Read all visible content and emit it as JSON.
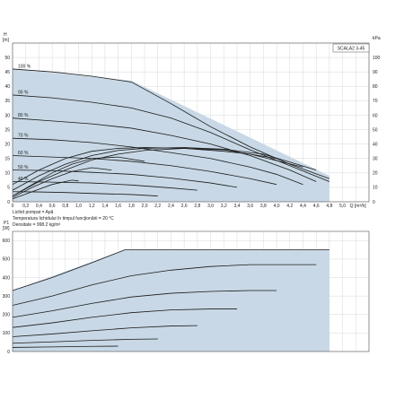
{
  "chart_data": [
    {
      "type": "line",
      "title": "SCALA2 3-45",
      "ylabel": "H [m]",
      "ylabel_right": "kPa",
      "xlabel": "Q [m³/h]",
      "xlim": [
        0,
        5.4
      ],
      "ylim": [
        0,
        55
      ],
      "ylim_right": [
        0,
        110
      ],
      "x_ticks": [
        "0",
        "0,2",
        "0,4",
        "0,6",
        "0,8",
        "1,0",
        "1,2",
        "1,4",
        "1,6",
        "1,8",
        "2,0",
        "2,2",
        "2,4",
        "2,6",
        "2,8",
        "3,0",
        "3,2",
        "3,4",
        "3,6",
        "3,8",
        "4,0",
        "4,2",
        "4,4",
        "4,6",
        "4,8",
        "5,0"
      ],
      "y_ticks": [
        "0",
        "5",
        "10",
        "15",
        "20",
        "25",
        "30",
        "35",
        "40",
        "45",
        "50"
      ],
      "y_ticks_right": [
        "0",
        "10",
        "20",
        "30",
        "40",
        "50",
        "60",
        "70",
        "80",
        "90",
        "100"
      ],
      "grid": true,
      "envelope": {
        "x": [
          0,
          0,
          1.8,
          4.8,
          4.8,
          0
        ],
        "y": [
          0,
          46,
          42,
          9,
          0,
          0
        ]
      },
      "series": [
        {
          "name": "100 %",
          "x": [
            0,
            0.6,
            1.2,
            1.8,
            2.4,
            3.0,
            3.6,
            4.2,
            4.8
          ],
          "y": [
            46,
            45,
            43.5,
            41.5,
            34,
            26,
            19,
            13,
            8
          ]
        },
        {
          "name": "90 %",
          "x": [
            0,
            0.6,
            1.2,
            1.8,
            2.4,
            3.0,
            3.6,
            4.2,
            4.8
          ],
          "y": [
            37,
            36,
            34.5,
            32.5,
            29,
            24,
            18,
            12.5,
            7
          ]
        },
        {
          "name": "80 %",
          "x": [
            0,
            0.6,
            1.2,
            1.8,
            2.4,
            3.0,
            3.6,
            4.2,
            4.6
          ],
          "y": [
            29,
            28,
            27,
            25.5,
            23,
            20,
            16,
            11,
            7
          ]
        },
        {
          "name": "70 %",
          "x": [
            0,
            0.6,
            1.2,
            1.8,
            2.4,
            3.0,
            3.6,
            4.0,
            4.4
          ],
          "y": [
            22,
            21.5,
            20.5,
            19,
            17,
            15,
            12,
            9.5,
            6
          ]
        },
        {
          "name": "60 %",
          "x": [
            0,
            0.6,
            1.2,
            1.8,
            2.4,
            3.0,
            3.6,
            4.0
          ],
          "y": [
            16,
            15.5,
            15,
            14,
            12.5,
            10.5,
            8,
            6
          ]
        },
        {
          "name": "50 %",
          "x": [
            0,
            0.6,
            1.2,
            1.8,
            2.4,
            3.0,
            3.4
          ],
          "y": [
            11,
            10.8,
            10.2,
            9.5,
            8.2,
            6.5,
            5
          ]
        },
        {
          "name": "40 %",
          "x": [
            0,
            0.6,
            1.2,
            1.8,
            2.4,
            2.8
          ],
          "y": [
            7,
            6.8,
            6.5,
            5.8,
            4.8,
            4
          ]
        },
        {
          "name": "",
          "x": [
            0,
            0.4,
            0.8,
            1.2,
            1.8,
            2.2
          ],
          "y": [
            3.5,
            3.4,
            3.2,
            2.9,
            2.5,
            2
          ]
        },
        {
          "name": "",
          "x": [
            0,
            0.4,
            0.8,
            1.2,
            1.6,
            2.0,
            2.6,
            3.2,
            3.6,
            4.4
          ],
          "y": [
            6,
            11,
            15,
            17.5,
            18.5,
            18.8,
            18.5,
            17.5,
            16.5,
            12
          ]
        },
        {
          "name": "",
          "x": [
            0,
            0.4,
            0.8,
            1.2,
            1.6,
            2.0,
            2.6,
            3.2,
            3.8,
            4.6
          ],
          "y": [
            4,
            9,
            13,
            16,
            17.8,
            18.5,
            18.8,
            18.2,
            16.5,
            11
          ]
        },
        {
          "name": "",
          "x": [
            0,
            0.4,
            0.8,
            1.2,
            1.6,
            2.0,
            2.6,
            3.2,
            4.0
          ],
          "y": [
            2,
            7,
            11,
            14.5,
            16.5,
            17.8,
            18.5,
            18,
            15
          ]
        },
        {
          "name": "",
          "x": [
            0,
            0.3,
            0.6,
            0.9,
            1.2,
            1.6,
            2.0
          ],
          "y": [
            2,
            6,
            10,
            13,
            15,
            15.5,
            14
          ]
        },
        {
          "name": "",
          "x": [
            0,
            0.3,
            0.6,
            0.9,
            1.2,
            1.5
          ],
          "y": [
            1.5,
            5,
            8,
            10.5,
            11.8,
            11
          ]
        },
        {
          "name": "",
          "x": [
            0,
            0.3,
            0.6,
            0.9,
            1.0
          ],
          "y": [
            1,
            3.5,
            6,
            7.5,
            7.2
          ]
        }
      ]
    },
    {
      "type": "line",
      "ylabel": "P1 [W]",
      "xlim": [
        0,
        5.4
      ],
      "ylim": [
        0,
        650
      ],
      "y_ticks": [
        "0",
        "100",
        "200",
        "300",
        "400",
        "500",
        "600"
      ],
      "grid": true,
      "envelope": {
        "x": [
          0,
          1.7,
          4.8,
          4.8,
          0,
          0
        ],
        "y": [
          330,
          550,
          550,
          0,
          0,
          330
        ]
      },
      "series": [
        {
          "name": "",
          "x": [
            0,
            0.6,
            1.2,
            1.7,
            4.8
          ],
          "y": [
            330,
            400,
            480,
            550,
            550
          ]
        },
        {
          "name": "",
          "x": [
            0,
            0.6,
            1.2,
            1.8,
            2.4,
            3.0,
            3.6,
            4.2,
            4.6
          ],
          "y": [
            250,
            300,
            360,
            410,
            440,
            460,
            470,
            470,
            470
          ]
        },
        {
          "name": "",
          "x": [
            0,
            0.6,
            1.2,
            1.8,
            2.4,
            3.0,
            3.6,
            4.0
          ],
          "y": [
            185,
            220,
            260,
            295,
            315,
            325,
            330,
            330
          ]
        },
        {
          "name": "",
          "x": [
            0,
            0.6,
            1.2,
            1.8,
            2.4,
            3.0,
            3.4
          ],
          "y": [
            130,
            155,
            185,
            210,
            225,
            230,
            230
          ]
        },
        {
          "name": "",
          "x": [
            0,
            0.6,
            1.2,
            1.8,
            2.4,
            2.8
          ],
          "y": [
            80,
            95,
            112,
            128,
            138,
            140
          ]
        },
        {
          "name": "",
          "x": [
            0,
            0.6,
            1.2,
            1.8,
            2.2
          ],
          "y": [
            45,
            52,
            60,
            66,
            68
          ]
        },
        {
          "name": "",
          "x": [
            0,
            0.6,
            1.2,
            1.6
          ],
          "y": [
            22,
            25,
            28,
            29
          ]
        }
      ]
    }
  ],
  "notes": {
    "line1": "Lichid pompat = Apă",
    "line2": "Temperatura lichidului în timpul funcţionării = 20 °C",
    "line3": "Densitate = 998.2 kg/m³"
  },
  "colors": {
    "envelope": "#c8d8e6",
    "curve": "#1a1a1a",
    "frame": "#555555"
  }
}
